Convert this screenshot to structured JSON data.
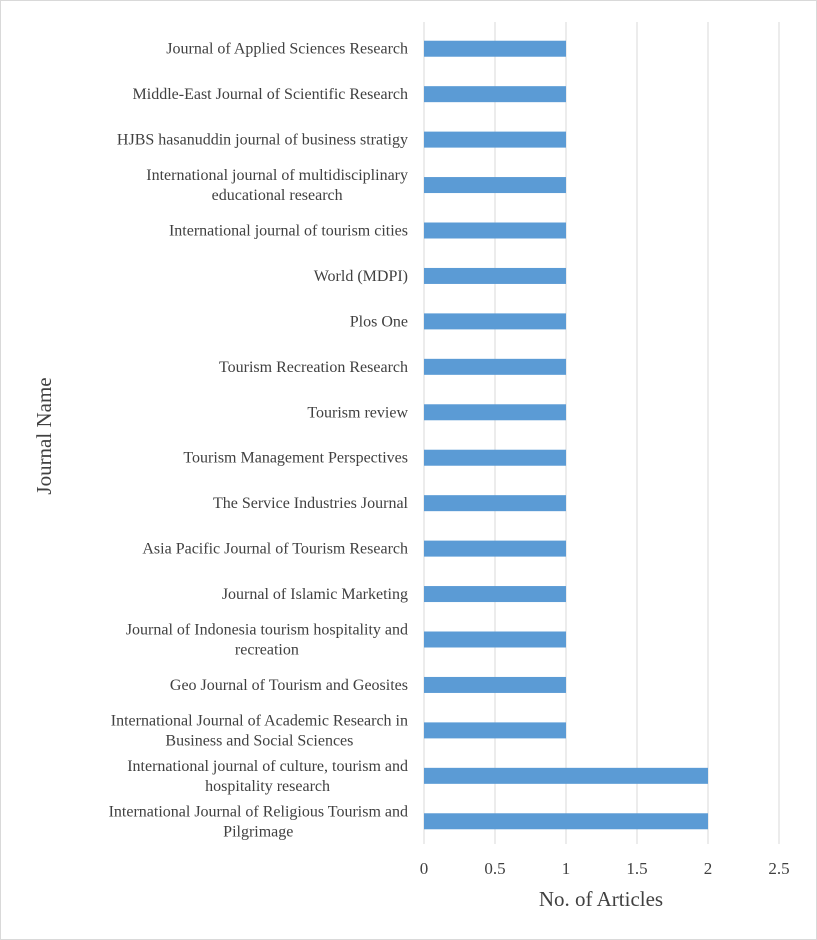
{
  "chart_data": {
    "type": "bar",
    "orientation": "horizontal",
    "xlabel": "No. of Articles",
    "ylabel": "Journal Name",
    "xlim": [
      0,
      2.5
    ],
    "x_ticks": [
      "0",
      "0.5",
      "1",
      "1.5",
      "2",
      "2.5"
    ],
    "grid": true,
    "bar_color": "#5b9bd5",
    "categories": [
      [
        "Journal of Applied Sciences Research"
      ],
      [
        "Middle-East Journal of Scientific Research"
      ],
      [
        "HJBS hasanuddin journal of business stratigy"
      ],
      [
        "International journal of multidisciplinary",
        "educational research"
      ],
      [
        "International journal of tourism cities"
      ],
      [
        "World (MDPI)"
      ],
      [
        "Plos One"
      ],
      [
        "Tourism Recreation Research"
      ],
      [
        "Tourism review"
      ],
      [
        "Tourism Management Perspectives"
      ],
      [
        "The Service Industries Journal"
      ],
      [
        "Asia Pacific Journal of Tourism Research"
      ],
      [
        "Journal of Islamic Marketing"
      ],
      [
        "Journal of Indonesia tourism hospitality  and",
        "recreation"
      ],
      [
        "Geo Journal of Tourism and Geosites"
      ],
      [
        "International Journal of Academic Research in",
        "Business and Social Sciences"
      ],
      [
        "International journal of culture, tourism and",
        "hospitality research"
      ],
      [
        "International Journal of Religious Tourism and",
        "Pilgrimage"
      ]
    ],
    "values": [
      1,
      1,
      1,
      1,
      1,
      1,
      1,
      1,
      1,
      1,
      1,
      1,
      1,
      1,
      1,
      1,
      2,
      2
    ]
  }
}
